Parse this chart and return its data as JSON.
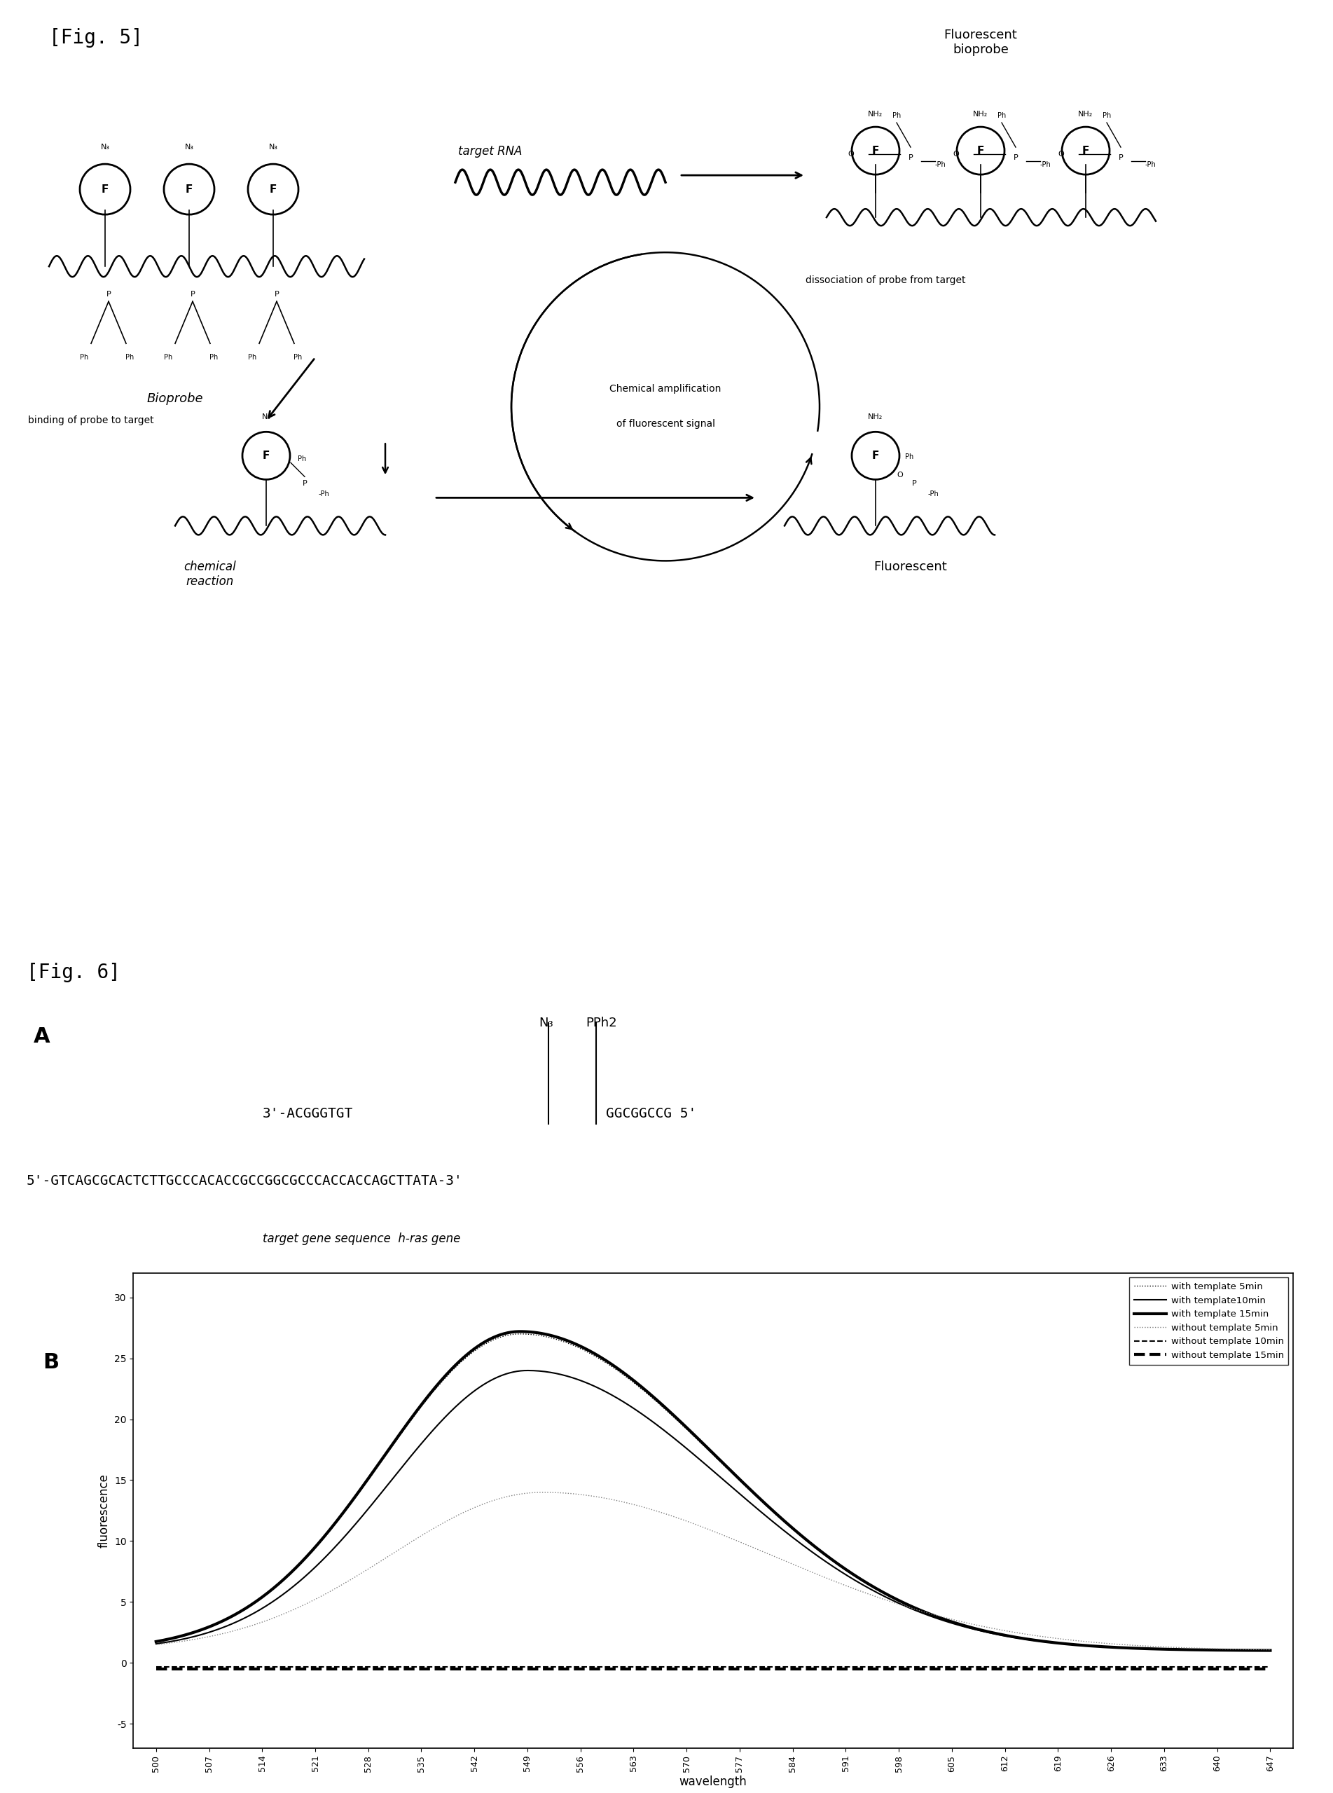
{
  "fig5_title": "[Fig. 5]",
  "fig6_title": "[Fig. 6]",
  "fig6A_label": "A",
  "fig6B_label": "B",
  "xlabel": "wavelength",
  "ylabel": "fluorescence",
  "yticks": [
    -5,
    0,
    5,
    10,
    15,
    20,
    25,
    30
  ],
  "xticks": [
    500,
    507,
    514,
    521,
    528,
    535,
    542,
    549,
    556,
    563,
    570,
    577,
    584,
    591,
    598,
    605,
    612,
    619,
    626,
    633,
    640,
    647
  ],
  "ylim": [
    -7,
    32
  ],
  "xlim": [
    497,
    650
  ],
  "legend_entries": [
    "with template 5min",
    "with template10min",
    "with template 15min",
    "without template 5min",
    "without template 10min",
    "without template 15min"
  ],
  "bioprobe_label": "Bioprobe",
  "fluorescent_bioprobe_label": "Fluorescent\nbioprobe",
  "fluorescent_label": "Fluorescent",
  "target_rna_label": "target RNA",
  "chemical_amp_label1": "Chemical amplification",
  "chemical_amp_label2": "of fluorescent signal",
  "binding_label": "binding of probe to target",
  "dissociation_label": "dissociation of probe from target",
  "chemical_reaction_label": "chemical\nreaction",
  "sequence_top": "3'-ACGGGTGT   GGCGGCCG 5'",
  "sequence_bottom": "5'-GTCAGCGCACTCTTGCCCACACCGCCGGCGCCCACCACCAGCTTATA-3'",
  "target_gene": "target gene sequence  h-ras gene",
  "n3_label": "N₃",
  "pph2_label": "PPh2"
}
